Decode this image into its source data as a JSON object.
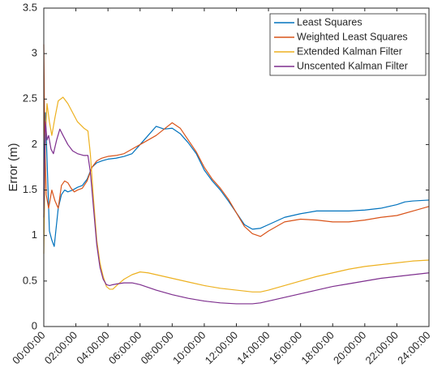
{
  "chart_data": {
    "type": "line",
    "title": "",
    "xlabel": "",
    "ylabel": "Error (m)",
    "xlim": [
      0,
      24
    ],
    "ylim": [
      0,
      3.5
    ],
    "x_ticks": [
      0,
      2,
      4,
      6,
      8,
      10,
      12,
      14,
      16,
      18,
      20,
      22,
      24
    ],
    "x_tick_labels": [
      "00:00:00",
      "02:00:00",
      "04:00:00",
      "06:00:00",
      "08:00:00",
      "10:00:00",
      "12:00:00",
      "14:00:00",
      "16:00:00",
      "18:00:00",
      "20:00:00",
      "22:00:00",
      "24:00:00"
    ],
    "y_ticks": [
      0,
      0.5,
      1,
      1.5,
      2,
      2.5,
      3,
      3.5
    ],
    "y_tick_labels": [
      "0",
      "0.5",
      "1",
      "1.5",
      "2",
      "2.5",
      "3",
      "3.5"
    ],
    "grid": false,
    "legend_position": "top-right",
    "series": [
      {
        "name": "Least Squares",
        "color": "#0072BD",
        "x": [
          0,
          0.1,
          0.2,
          0.35,
          0.5,
          0.65,
          0.75,
          0.9,
          1.1,
          1.3,
          1.5,
          1.8,
          2.1,
          2.4,
          2.7,
          3.0,
          3.3,
          3.6,
          4.0,
          4.5,
          5.0,
          5.5,
          6.0,
          6.5,
          7.0,
          7.5,
          8.0,
          8.5,
          9.0,
          9.5,
          10.0,
          10.5,
          11.0,
          11.5,
          12.0,
          12.5,
          13.0,
          13.5,
          14.0,
          14.5,
          15.0,
          16.0,
          17.0,
          18.0,
          19.0,
          20.0,
          21.0,
          22.0,
          22.5,
          23.0,
          24.0
        ],
        "y": [
          1.5,
          2.35,
          1.85,
          1.05,
          0.95,
          0.88,
          1.05,
          1.3,
          1.45,
          1.5,
          1.48,
          1.5,
          1.53,
          1.55,
          1.62,
          1.75,
          1.8,
          1.82,
          1.84,
          1.85,
          1.87,
          1.9,
          2.0,
          2.1,
          2.2,
          2.17,
          2.18,
          2.12,
          2.02,
          1.9,
          1.72,
          1.6,
          1.5,
          1.38,
          1.25,
          1.12,
          1.07,
          1.08,
          1.12,
          1.16,
          1.2,
          1.24,
          1.27,
          1.27,
          1.27,
          1.28,
          1.3,
          1.34,
          1.37,
          1.38,
          1.39
        ]
      },
      {
        "name": "Weighted Least Squares",
        "color": "#D95319",
        "x": [
          0,
          0.05,
          0.15,
          0.3,
          0.5,
          0.7,
          0.9,
          1.1,
          1.3,
          1.5,
          1.7,
          1.9,
          2.1,
          2.4,
          2.7,
          3.0,
          3.3,
          3.6,
          4.0,
          4.5,
          5.0,
          5.5,
          6.0,
          6.5,
          7.0,
          7.5,
          8.0,
          8.5,
          9.0,
          9.5,
          10.0,
          10.5,
          11.0,
          11.5,
          12.0,
          12.5,
          13.0,
          13.5,
          14.0,
          14.5,
          15.0,
          16.0,
          17.0,
          18.0,
          19.0,
          20.0,
          21.0,
          22.0,
          23.0,
          24.0
        ],
        "y": [
          3.1,
          2.2,
          1.45,
          1.3,
          1.5,
          1.38,
          1.3,
          1.55,
          1.6,
          1.58,
          1.52,
          1.48,
          1.5,
          1.52,
          1.6,
          1.75,
          1.82,
          1.85,
          1.87,
          1.88,
          1.9,
          1.95,
          2.0,
          2.05,
          2.1,
          2.17,
          2.24,
          2.18,
          2.05,
          1.92,
          1.75,
          1.62,
          1.52,
          1.4,
          1.25,
          1.1,
          1.02,
          0.99,
          1.05,
          1.1,
          1.15,
          1.18,
          1.17,
          1.15,
          1.15,
          1.17,
          1.2,
          1.22,
          1.27,
          1.32
        ]
      },
      {
        "name": "Extended Kalman Filter",
        "color": "#EDB120",
        "x": [
          0,
          0.1,
          0.2,
          0.35,
          0.5,
          0.7,
          0.9,
          1.2,
          1.5,
          1.8,
          2.1,
          2.5,
          2.75,
          2.9,
          3.1,
          3.3,
          3.5,
          3.7,
          3.9,
          4.1,
          4.3,
          4.6,
          5.0,
          5.5,
          6.0,
          6.5,
          7.0,
          8.0,
          9.0,
          10.0,
          11.0,
          12.0,
          13.0,
          13.5,
          14.0,
          15.0,
          16.0,
          17.0,
          18.0,
          19.0,
          20.0,
          21.0,
          22.0,
          23.0,
          24.0
        ],
        "y": [
          0.8,
          2.1,
          2.45,
          2.25,
          2.1,
          2.3,
          2.48,
          2.52,
          2.45,
          2.35,
          2.25,
          2.18,
          2.15,
          1.9,
          1.4,
          0.95,
          0.7,
          0.55,
          0.44,
          0.41,
          0.41,
          0.46,
          0.52,
          0.57,
          0.6,
          0.59,
          0.57,
          0.53,
          0.49,
          0.45,
          0.42,
          0.4,
          0.38,
          0.38,
          0.4,
          0.45,
          0.5,
          0.55,
          0.59,
          0.63,
          0.66,
          0.68,
          0.7,
          0.72,
          0.73
        ]
      },
      {
        "name": "Unscented Kalman Filter",
        "color": "#7E2F8E",
        "x": [
          0,
          0.1,
          0.2,
          0.3,
          0.45,
          0.6,
          0.8,
          1.0,
          1.2,
          1.5,
          1.8,
          2.1,
          2.5,
          2.75,
          2.9,
          3.1,
          3.3,
          3.5,
          3.7,
          3.9,
          4.1,
          4.3,
          4.6,
          5.0,
          5.5,
          6.0,
          6.5,
          7.0,
          8.0,
          9.0,
          10.0,
          11.0,
          12.0,
          13.0,
          13.5,
          14.0,
          15.0,
          16.0,
          17.0,
          18.0,
          19.0,
          20.0,
          21.0,
          22.0,
          23.0,
          24.0
        ],
        "y": [
          1.2,
          2.25,
          2.05,
          2.1,
          1.95,
          1.9,
          2.05,
          2.17,
          2.1,
          2.0,
          1.93,
          1.9,
          1.88,
          1.88,
          1.7,
          1.3,
          0.9,
          0.65,
          0.52,
          0.46,
          0.45,
          0.46,
          0.47,
          0.48,
          0.48,
          0.46,
          0.43,
          0.4,
          0.35,
          0.31,
          0.28,
          0.26,
          0.25,
          0.25,
          0.26,
          0.28,
          0.32,
          0.36,
          0.4,
          0.44,
          0.47,
          0.5,
          0.53,
          0.55,
          0.57,
          0.59
        ]
      }
    ]
  }
}
